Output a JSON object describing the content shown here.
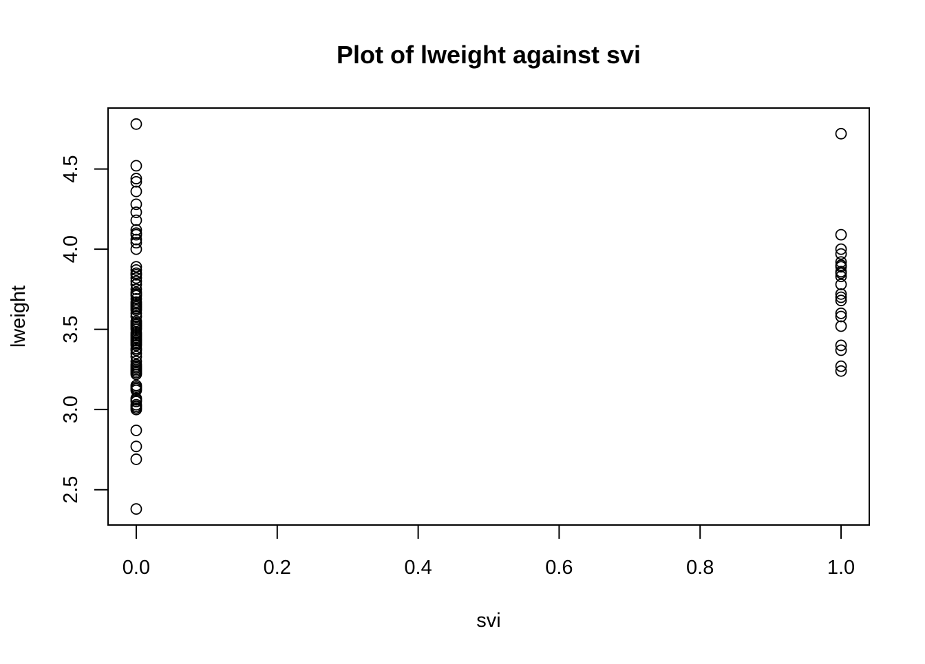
{
  "chart_data": {
    "type": "scatter",
    "title": "Plot of  lweight  against svi",
    "xlabel": "svi",
    "ylabel": "lweight",
    "xlim": [
      -0.04,
      1.04
    ],
    "ylim": [
      2.28,
      4.88
    ],
    "x_ticks": [
      0.0,
      0.2,
      0.4,
      0.6,
      0.8,
      1.0
    ],
    "x_tick_labels": [
      "0.0",
      "0.2",
      "0.4",
      "0.6",
      "0.8",
      "1.0"
    ],
    "y_ticks": [
      2.5,
      3.0,
      3.5,
      4.0,
      4.5
    ],
    "y_tick_labels": [
      "2.5",
      "3.0",
      "3.5",
      "4.0",
      "4.5"
    ],
    "grid": false,
    "legend": "none",
    "marker": "open-circle",
    "color": "#000000",
    "series": [
      {
        "x": [
          0,
          0,
          0,
          0,
          0,
          0,
          0,
          0,
          0,
          0,
          0,
          0,
          0,
          0,
          0,
          0,
          0,
          0,
          0,
          0,
          0,
          0,
          0,
          0,
          0,
          0,
          0,
          0,
          0,
          0,
          0,
          0,
          0,
          0,
          0,
          0,
          0,
          0,
          0,
          0,
          0,
          0,
          0,
          0,
          0,
          0,
          0,
          0,
          0,
          0,
          0,
          0,
          0,
          0,
          0,
          0,
          0,
          0,
          0,
          0,
          0,
          0,
          0,
          0,
          0,
          0,
          0,
          0,
          0,
          0,
          0,
          0,
          0,
          0,
          0,
          0,
          1,
          1,
          1,
          1,
          1,
          1,
          1,
          1,
          1,
          1,
          1,
          1,
          1,
          1,
          1,
          1,
          1,
          1,
          1,
          1,
          1
        ],
        "y": [
          4.78,
          4.52,
          4.44,
          4.42,
          4.36,
          4.28,
          4.23,
          4.18,
          4.12,
          4.1,
          4.09,
          4.06,
          4.04,
          4.0,
          3.89,
          3.87,
          3.85,
          3.84,
          3.82,
          3.8,
          3.78,
          3.75,
          3.73,
          3.72,
          3.71,
          3.69,
          3.67,
          3.66,
          3.65,
          3.64,
          3.63,
          3.62,
          3.6,
          3.58,
          3.55,
          3.54,
          3.53,
          3.52,
          3.51,
          3.5,
          3.48,
          3.47,
          3.46,
          3.45,
          3.44,
          3.43,
          3.42,
          3.41,
          3.4,
          3.38,
          3.37,
          3.35,
          3.33,
          3.3,
          3.28,
          3.27,
          3.26,
          3.25,
          3.24,
          3.23,
          3.22,
          3.15,
          3.14,
          3.13,
          3.12,
          3.07,
          3.06,
          3.05,
          3.03,
          3.02,
          3.01,
          3.0,
          2.87,
          2.77,
          2.69,
          2.38,
          4.72,
          4.09,
          4.0,
          3.97,
          3.92,
          3.9,
          3.89,
          3.86,
          3.85,
          3.83,
          3.78,
          3.72,
          3.7,
          3.68,
          3.6,
          3.58,
          3.52,
          3.4,
          3.37,
          3.27,
          3.24
        ]
      }
    ]
  }
}
